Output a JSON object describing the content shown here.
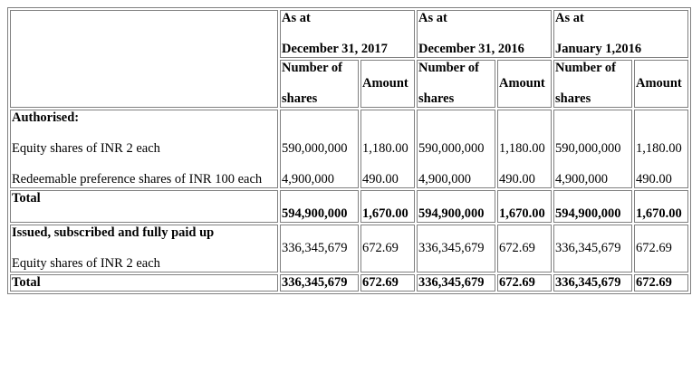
{
  "header": {
    "periods": [
      {
        "line1": "As at",
        "line2": "December 31, 2017"
      },
      {
        "line1": "As at",
        "line2": "December 31, 2016"
      },
      {
        "line1": "As at",
        "line2": "January 1,2016"
      }
    ],
    "number_of_line1": "Number of",
    "number_of_line2": "shares",
    "amount": "Amount"
  },
  "authorised": {
    "heading": "Authorised:",
    "item1": "Equity shares of INR 2 each",
    "item2": "Redeemable preference shares of INR 100 each",
    "rows": [
      {
        "shares": "590,000,000",
        "amount": "1,180.00"
      },
      {
        "shares": "4,900,000",
        "amount": "490.00"
      }
    ]
  },
  "total1": {
    "label": "Total",
    "values": [
      {
        "shares": "594,900,000",
        "amount": "1,670.00"
      },
      {
        "shares": "594,900,000",
        "amount": "1,670.00"
      },
      {
        "shares": "594,900,000",
        "amount": "1,670.00"
      }
    ]
  },
  "issued": {
    "heading": "Issued, subscribed and fully paid up",
    "item1": "Equity shares of INR 2 each",
    "values": [
      {
        "shares": "336,345,679",
        "amount": "672.69"
      },
      {
        "shares": "336,345,679",
        "amount": "672.69"
      },
      {
        "shares": "336,345,679",
        "amount": "672.69"
      }
    ]
  },
  "total2": {
    "label": "Total",
    "values": [
      {
        "shares": "336,345,679",
        "amount": "672.69"
      },
      {
        "shares": "336,345,679",
        "amount": "672.69"
      },
      {
        "shares": "336,345,679",
        "amount": "672.69"
      }
    ]
  }
}
